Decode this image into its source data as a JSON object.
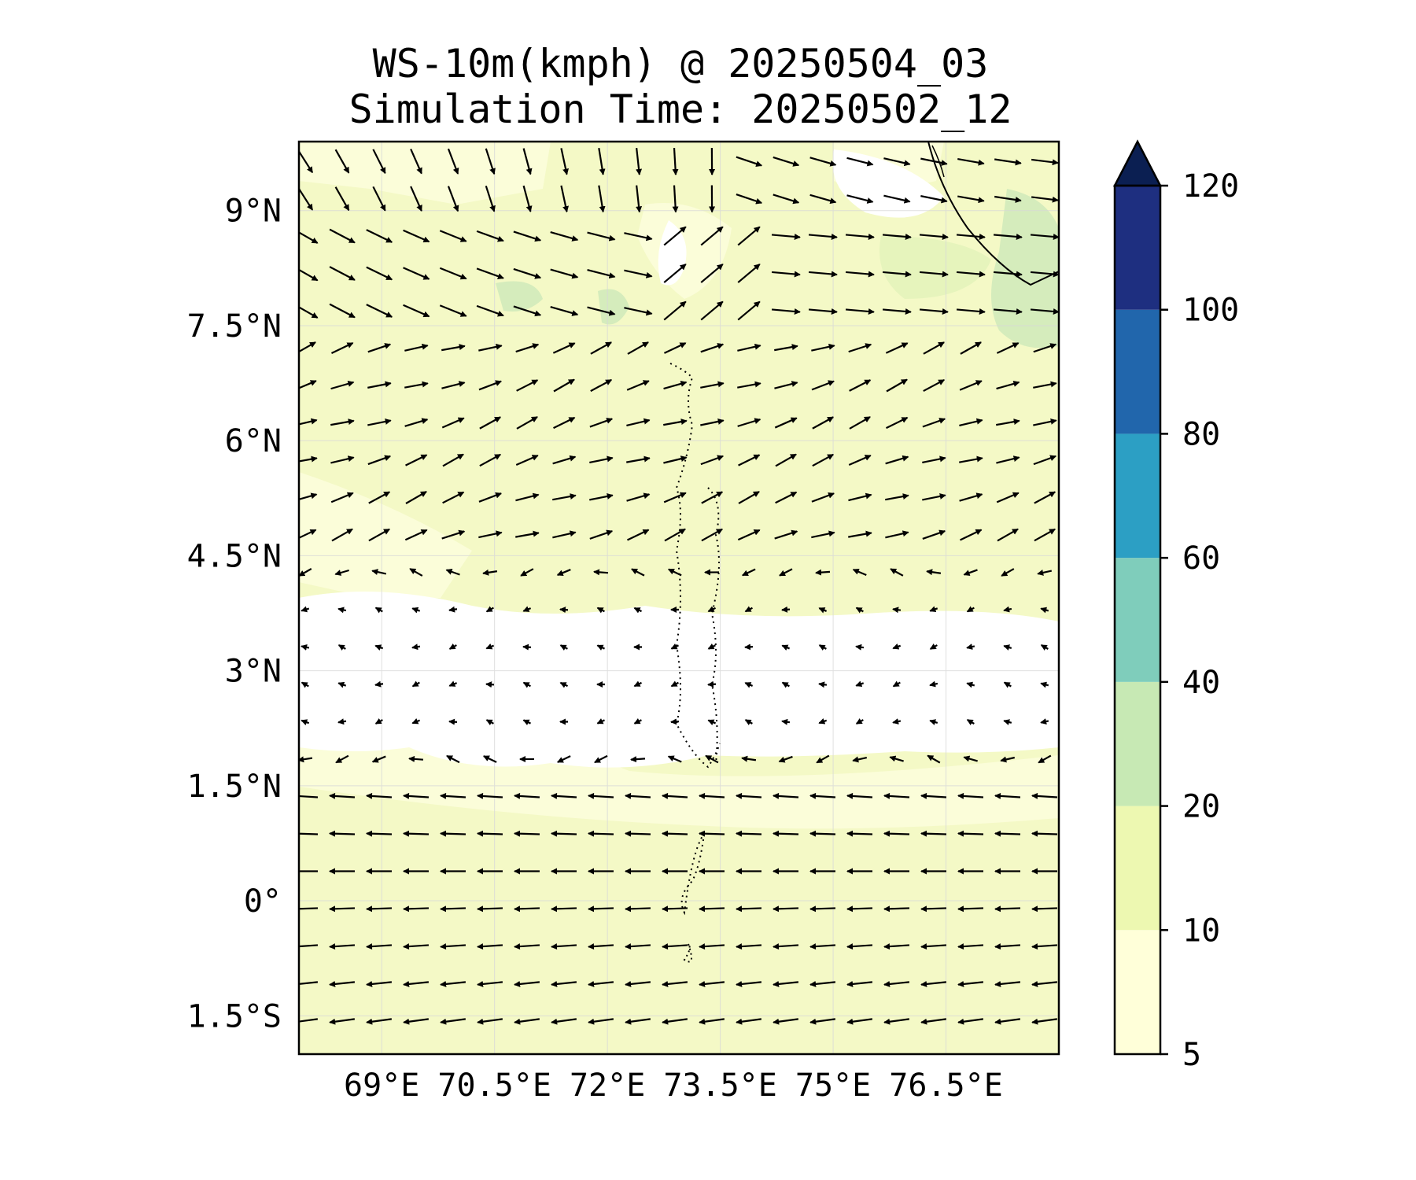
{
  "title": "WS-10m(kmph) @ 20250504_03",
  "subtitle": "Simulation Time: 20250502_12",
  "map": {
    "lon_range": [
      67.9,
      78.0
    ],
    "lat_range": [
      -2.0,
      9.9
    ],
    "lon_ticks": [
      {
        "value": 69,
        "label": "69°E"
      },
      {
        "value": 70.5,
        "label": "70.5°E"
      },
      {
        "value": 72,
        "label": "72°E"
      },
      {
        "value": 73.5,
        "label": "73.5°E"
      },
      {
        "value": 75,
        "label": "75°E"
      },
      {
        "value": 76.5,
        "label": "76.5°E"
      }
    ],
    "lat_ticks": [
      {
        "value": 9,
        "label": "9°N"
      },
      {
        "value": 7.5,
        "label": "7.5°N"
      },
      {
        "value": 6,
        "label": "6°N"
      },
      {
        "value": 4.5,
        "label": "4.5°N"
      },
      {
        "value": 3,
        "label": "3°N"
      },
      {
        "value": 1.5,
        "label": "1.5°N"
      },
      {
        "value": 0,
        "label": "0°"
      },
      {
        "value": -1.5,
        "label": "1.5°S"
      }
    ],
    "gridlines": true,
    "calm_band_lat": [
      2.0,
      4.0
    ],
    "land_label": "India / Sri Lanka coastline (top-right)"
  },
  "colorbar": {
    "extend": "max",
    "levels": [
      {
        "label": "5",
        "value": 5
      },
      {
        "label": "10",
        "value": 10
      },
      {
        "label": "20",
        "value": 20
      },
      {
        "label": "40",
        "value": 40
      },
      {
        "label": "60",
        "value": 60
      },
      {
        "label": "80",
        "value": 80
      },
      {
        "label": "100",
        "value": 100
      },
      {
        "label": "120",
        "value": 120
      }
    ],
    "colors": [
      "#ffffd9",
      "#edf8b1",
      "#c7e9b4",
      "#7fcdbb",
      "#2c9fc4",
      "#2166ac",
      "#1e2f80",
      "#0b1f52"
    ]
  },
  "colors": {
    "calm": "#ffffff",
    "low": "#f8fcd0",
    "mid": "#eef7bb",
    "high": "#d3ecbd",
    "arrow": "#000000"
  }
}
